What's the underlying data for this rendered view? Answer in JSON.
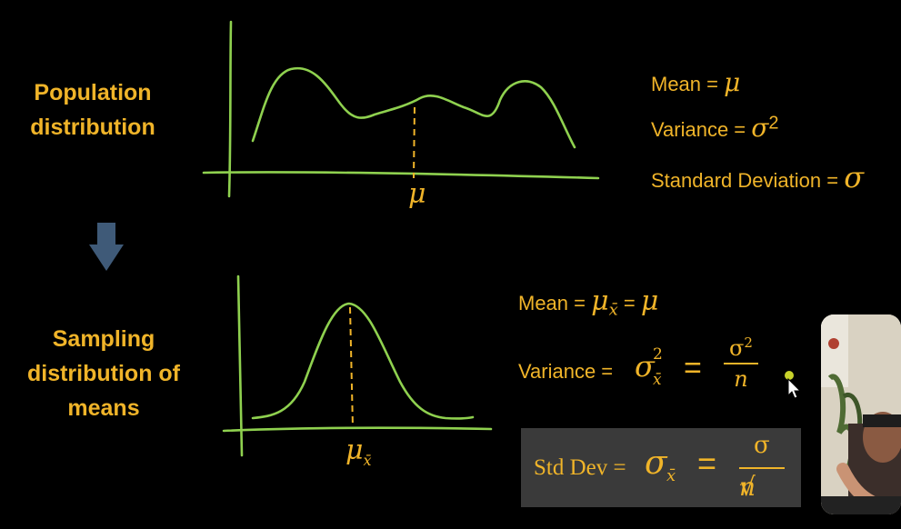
{
  "population": {
    "title_line1": "Population",
    "title_line2": "distribution",
    "axis_label": "μ",
    "mean_label": "Mean =",
    "mean_symbol": "μ",
    "variance_label": "Variance =",
    "variance_symbol": "σ",
    "variance_exp": "2",
    "std_label": "Standard Deviation =",
    "std_symbol": "σ"
  },
  "sampling": {
    "title_line1": "Sampling",
    "title_line2": "distribution of",
    "title_line3": "means",
    "axis_label": "μ",
    "axis_sub": "x̄",
    "mean_label": "Mean =",
    "mean_symbol": "μ",
    "mean_sub": "x̄",
    "mean_eq": "=",
    "mean_rhs": "μ",
    "variance_label": "Variance =",
    "variance_symbol": "σ",
    "variance_sup": "2",
    "variance_sub": "x̄",
    "variance_eq": "=",
    "variance_num": "σ",
    "variance_num_sup": "2",
    "variance_den": "n"
  },
  "stddev_box": {
    "label": "Std Dev =",
    "symbol": "σ",
    "sub": "x̄",
    "eq": "=",
    "num": "σ",
    "den": "n",
    "root": "√"
  },
  "colors": {
    "accent": "#f0b429",
    "curve": "#8fd14f",
    "axis": "#8fd14f",
    "box": "#3a3a3a"
  }
}
